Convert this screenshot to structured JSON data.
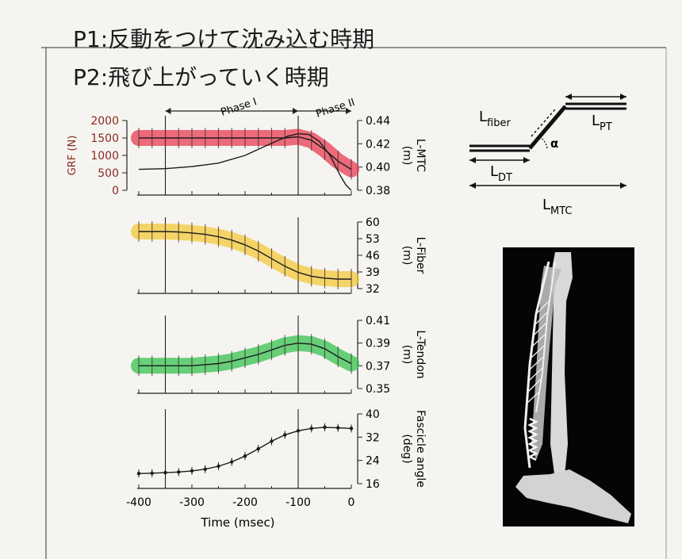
{
  "annotations": {
    "p1": "P1:反動をつけて沈み込む時期",
    "p2": "P2:飛び上がっていく時期"
  },
  "schematic": {
    "labels": {
      "fiber": "L",
      "fiber_sub": "fiber",
      "pt": "L",
      "pt_sub": "PT",
      "dt": "L",
      "dt_sub": "DT",
      "mtc": "L",
      "mtc_sub": "MTC",
      "alpha": "α"
    }
  },
  "colors": {
    "red": "#e8344c",
    "yellow": "#f2c732",
    "green": "#2ec04a",
    "ink": "#1b1b1b",
    "grf_axis": "#8a2a1e"
  },
  "chart_data": [
    {
      "id": "lmtc",
      "type": "line",
      "x_label": "",
      "xlim": [
        -400,
        0
      ],
      "phase_labels": [
        "Phase I",
        "Phase II"
      ],
      "phase_boundaries": [
        -350,
        -100,
        0
      ],
      "left_axis": {
        "label": "GRF (N)",
        "ticks": [
          "2000",
          "1500",
          "1000",
          "500",
          "0"
        ],
        "range": [
          0,
          2000
        ]
      },
      "right_axis": {
        "label": "L-MTC",
        "unit": "(m)",
        "ticks": [
          "0.44",
          "0.42",
          "0.40",
          "0.38"
        ],
        "range": [
          0.38,
          0.44
        ]
      },
      "series": [
        {
          "x": [
            -400,
            -375,
            -350,
            -325,
            -300,
            -275,
            -250,
            -225,
            -200,
            -175,
            -150,
            -125,
            -100,
            -75,
            -50,
            -25,
            0
          ],
          "values": [
            0.425,
            0.425,
            0.425,
            0.425,
            0.425,
            0.425,
            0.425,
            0.425,
            0.425,
            0.425,
            0.425,
            0.425,
            0.426,
            0.423,
            0.415,
            0.405,
            0.398
          ],
          "color": "red",
          "axis": "right"
        },
        {
          "x": [
            -400,
            -350,
            -300,
            -250,
            -200,
            -150,
            -120,
            -100,
            -80,
            -60,
            -40,
            -20,
            -10,
            0
          ],
          "values": [
            600,
            620,
            680,
            780,
            1000,
            1350,
            1550,
            1620,
            1600,
            1400,
            1000,
            400,
            150,
            0
          ],
          "color": "ink",
          "axis": "left"
        }
      ]
    },
    {
      "id": "lfiber",
      "type": "line",
      "xlim": [
        -400,
        0
      ],
      "right_axis": {
        "label": "L-Fiber",
        "unit": "(m)",
        "ticks": [
          "60",
          "53",
          "46",
          "39",
          "32"
        ],
        "range": [
          32,
          60
        ]
      },
      "series": [
        {
          "x": [
            -400,
            -375,
            -350,
            -325,
            -300,
            -275,
            -250,
            -225,
            -200,
            -175,
            -150,
            -125,
            -100,
            -75,
            -50,
            -25,
            0
          ],
          "values": [
            56,
            56,
            56,
            55.8,
            55.4,
            54.8,
            53.8,
            52.4,
            50.4,
            47.8,
            44.6,
            41.4,
            38.8,
            37.2,
            36.4,
            36.0,
            36.0
          ],
          "color": "yellow"
        }
      ]
    },
    {
      "id": "ltendon",
      "type": "line",
      "xlim": [
        -400,
        0
      ],
      "right_axis": {
        "label": "L-Tendon",
        "unit": "(m)",
        "ticks": [
          "0.41",
          "0.39",
          "0.37",
          "0.35"
        ],
        "range": [
          0.35,
          0.41
        ]
      },
      "series": [
        {
          "x": [
            -400,
            -375,
            -350,
            -325,
            -300,
            -275,
            -250,
            -225,
            -200,
            -175,
            -150,
            -125,
            -100,
            -75,
            -50,
            -25,
            0
          ],
          "values": [
            0.37,
            0.37,
            0.37,
            0.37,
            0.37,
            0.371,
            0.372,
            0.374,
            0.377,
            0.38,
            0.384,
            0.388,
            0.39,
            0.389,
            0.385,
            0.378,
            0.372
          ],
          "color": "green"
        }
      ]
    },
    {
      "id": "fascicle",
      "type": "line",
      "x_label": "Time (msec)",
      "x_ticks": [
        "-400",
        "-300",
        "-200",
        "-100",
        "0"
      ],
      "xlim": [
        -400,
        0
      ],
      "right_axis": {
        "label": "Fascicle angle",
        "unit": "(deg)",
        "ticks": [
          "40",
          "32",
          "24",
          "16"
        ],
        "range": [
          16,
          40
        ]
      },
      "series": [
        {
          "x": [
            -400,
            -375,
            -350,
            -325,
            -300,
            -275,
            -250,
            -225,
            -200,
            -175,
            -150,
            -125,
            -100,
            -75,
            -50,
            -25,
            0
          ],
          "values": [
            19.5,
            19.6,
            19.8,
            20.0,
            20.4,
            21.0,
            22.0,
            23.5,
            25.5,
            28.0,
            30.6,
            32.8,
            34.2,
            35.0,
            35.4,
            35.2,
            35.0
          ],
          "color": "ink"
        }
      ]
    }
  ]
}
